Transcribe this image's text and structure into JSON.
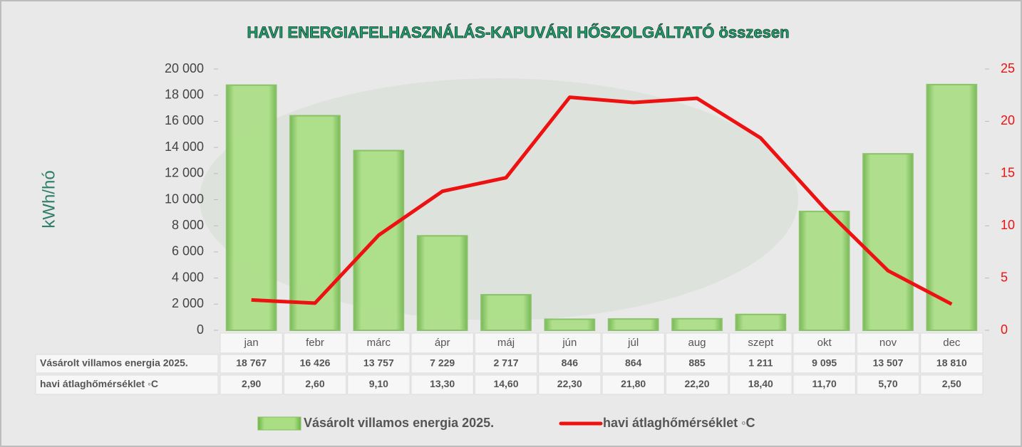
{
  "chart_data": {
    "type": "bar",
    "title": "HAVI ENERGIAFELHASZNÁLÁS-KAPUVÁRI HŐSZOLGÁLTATÓ összesen",
    "y_label": "kWh/hó",
    "categories": [
      "jan",
      "febr",
      "márc",
      "ápr",
      "máj",
      "jún",
      "júl",
      "aug",
      "szept",
      "okt",
      "nov",
      "dec"
    ],
    "series": [
      {
        "name": "Vásárolt villamos energia 2025.",
        "type": "bar",
        "color": "#9bd672",
        "values": [
          18767,
          16426,
          13757,
          7229,
          2717,
          846,
          864,
          885,
          1211,
          9095,
          13507,
          18810
        ],
        "value_labels": [
          "18 767",
          "16 426",
          "13 757",
          "7 229",
          "2 717",
          "846",
          "864",
          "885",
          "1 211",
          "9 095",
          "13 507",
          "18 810"
        ]
      },
      {
        "name": "havi átlaghőmérséklet ◦C",
        "type": "line",
        "axis": "y2",
        "color": "#ee1111",
        "values": [
          2.9,
          2.6,
          9.1,
          13.3,
          14.6,
          22.3,
          21.8,
          22.2,
          18.4,
          11.7,
          5.7,
          2.5
        ],
        "value_labels": [
          "2,90",
          "2,60",
          "9,10",
          "13,30",
          "14,60",
          "22,30",
          "21,80",
          "22,20",
          "18,40",
          "11,70",
          "5,70",
          "2,50"
        ]
      }
    ],
    "ylim": [
      0,
      20000
    ],
    "yticks": [
      0,
      {
        "value": 2000,
        "label": "2 000"
      },
      {
        "value": 4000,
        "label": "4 000"
      },
      {
        "value": 6000,
        "label": "6 000"
      },
      {
        "value": 8000,
        "label": "8 000"
      },
      {
        "value": 10000,
        "label": "10 000"
      },
      {
        "value": 12000,
        "label": "12 000"
      },
      {
        "value": 14000,
        "label": "14 000"
      },
      {
        "value": 16000,
        "label": "16 000"
      },
      {
        "value": 18000,
        "label": "18 000"
      },
      {
        "value": 20000,
        "label": "20 000"
      }
    ],
    "y2lim": [
      0,
      25
    ],
    "y2ticks": [
      0,
      5,
      10,
      15,
      20,
      25
    ],
    "y2_color": "#ee1111",
    "legend": "bottom"
  }
}
